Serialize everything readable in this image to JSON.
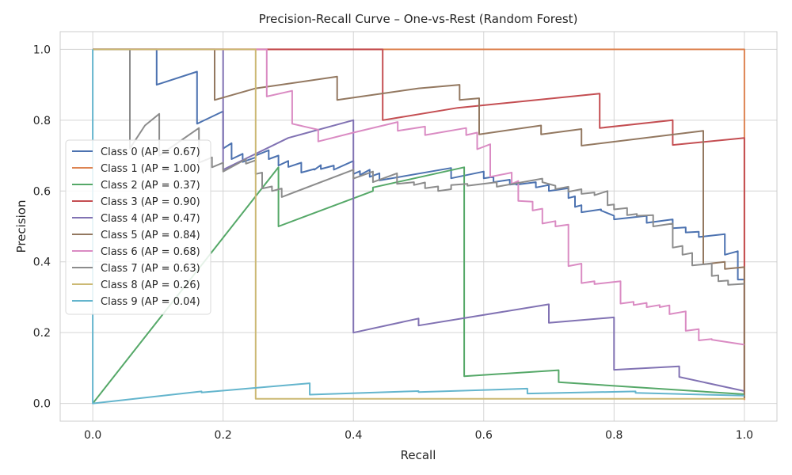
{
  "chart_data": {
    "type": "line",
    "title": "Precision-Recall Curve – One-vs-Rest (Random Forest)",
    "xlabel": "Recall",
    "ylabel": "Precision",
    "xlim": [
      -0.05,
      1.05
    ],
    "ylim": [
      -0.05,
      1.05
    ],
    "xticks": [
      "0.0",
      "0.2",
      "0.4",
      "0.6",
      "0.8",
      "1.0"
    ],
    "yticks": [
      "0.0",
      "0.2",
      "0.4",
      "0.6",
      "0.8",
      "1.0"
    ],
    "grid": true,
    "legend_position": "center-left",
    "series": [
      {
        "name": "Class 0 (AP = 0.67)",
        "color": "#4c72b0",
        "points": [
          [
            0,
            1
          ],
          [
            0.098,
            1
          ],
          [
            0.098,
            0.9
          ],
          [
            0.16,
            0.937
          ],
          [
            0.16,
            0.79
          ],
          [
            0.2,
            0.825
          ],
          [
            0.2,
            0.72
          ],
          [
            0.213,
            0.735
          ],
          [
            0.213,
            0.69
          ],
          [
            0.23,
            0.705
          ],
          [
            0.23,
            0.682
          ],
          [
            0.25,
            0.695
          ],
          [
            0.25,
            0.7
          ],
          [
            0.27,
            0.715
          ],
          [
            0.27,
            0.69
          ],
          [
            0.285,
            0.7
          ],
          [
            0.285,
            0.672
          ],
          [
            0.3,
            0.685
          ],
          [
            0.3,
            0.668
          ],
          [
            0.32,
            0.68
          ],
          [
            0.32,
            0.652
          ],
          [
            0.34,
            0.662
          ],
          [
            0.34,
            0.66
          ],
          [
            0.35,
            0.673
          ],
          [
            0.35,
            0.662
          ],
          [
            0.37,
            0.672
          ],
          [
            0.37,
            0.66
          ],
          [
            0.4,
            0.685
          ],
          [
            0.4,
            0.648
          ],
          [
            0.41,
            0.656
          ],
          [
            0.41,
            0.645
          ],
          [
            0.425,
            0.66
          ],
          [
            0.425,
            0.64
          ],
          [
            0.44,
            0.65
          ],
          [
            0.44,
            0.63
          ],
          [
            0.55,
            0.665
          ],
          [
            0.55,
            0.636
          ],
          [
            0.6,
            0.655
          ],
          [
            0.6,
            0.636
          ],
          [
            0.615,
            0.64
          ],
          [
            0.615,
            0.625
          ],
          [
            0.64,
            0.632
          ],
          [
            0.64,
            0.618
          ],
          [
            0.65,
            0.62
          ],
          [
            0.65,
            0.618
          ],
          [
            0.68,
            0.625
          ],
          [
            0.68,
            0.61
          ],
          [
            0.7,
            0.617
          ],
          [
            0.7,
            0.6
          ],
          [
            0.73,
            0.608
          ],
          [
            0.73,
            0.58
          ],
          [
            0.74,
            0.585
          ],
          [
            0.74,
            0.555
          ],
          [
            0.75,
            0.56
          ],
          [
            0.75,
            0.54
          ],
          [
            0.78,
            0.548
          ],
          [
            0.78,
            0.545
          ],
          [
            0.8,
            0.53
          ],
          [
            0.8,
            0.52
          ],
          [
            0.85,
            0.53
          ],
          [
            0.85,
            0.51
          ],
          [
            0.89,
            0.52
          ],
          [
            0.89,
            0.495
          ],
          [
            0.91,
            0.497
          ],
          [
            0.91,
            0.483
          ],
          [
            0.93,
            0.485
          ],
          [
            0.93,
            0.47
          ],
          [
            0.97,
            0.478
          ],
          [
            0.97,
            0.42
          ],
          [
            0.99,
            0.43
          ],
          [
            0.99,
            0.35
          ],
          [
            1,
            0.35
          ],
          [
            1,
            0.025
          ]
        ]
      },
      {
        "name": "Class 1 (AP = 1.00)",
        "color": "#dd8452",
        "points": [
          [
            0,
            1
          ],
          [
            1,
            1
          ],
          [
            1,
            0.01
          ]
        ]
      },
      {
        "name": "Class 2 (AP = 0.37)",
        "color": "#55a868",
        "points": [
          [
            0,
            0
          ],
          [
            0.285,
            0.667
          ],
          [
            0.285,
            0.5
          ],
          [
            0.43,
            0.6
          ],
          [
            0.43,
            0.61
          ],
          [
            0.57,
            0.667
          ],
          [
            0.57,
            0.077
          ],
          [
            0.715,
            0.094
          ],
          [
            0.715,
            0.06
          ],
          [
            1,
            0.026
          ]
        ]
      },
      {
        "name": "Class 3 (AP = 0.90)",
        "color": "#c44e52",
        "points": [
          [
            0,
            1
          ],
          [
            0.445,
            1
          ],
          [
            0.445,
            0.8
          ],
          [
            0.56,
            0.835
          ],
          [
            0.778,
            0.875
          ],
          [
            0.778,
            0.778
          ],
          [
            0.89,
            0.8
          ],
          [
            0.89,
            0.73
          ],
          [
            1,
            0.75
          ],
          [
            1,
            0.03
          ]
        ]
      },
      {
        "name": "Class 4 (AP = 0.47)",
        "color": "#8172b3",
        "points": [
          [
            0,
            1
          ],
          [
            0.2,
            1
          ],
          [
            0.2,
            0.66
          ],
          [
            0.3,
            0.75
          ],
          [
            0.4,
            0.8
          ],
          [
            0.4,
            0.2
          ],
          [
            0.5,
            0.24
          ],
          [
            0.5,
            0.22
          ],
          [
            0.7,
            0.28
          ],
          [
            0.7,
            0.228
          ],
          [
            0.8,
            0.243
          ],
          [
            0.8,
            0.095
          ],
          [
            0.9,
            0.105
          ],
          [
            0.9,
            0.075
          ],
          [
            1,
            0.035
          ]
        ]
      },
      {
        "name": "Class 5 (AP = 0.84)",
        "color": "#937860",
        "points": [
          [
            0,
            1
          ],
          [
            0.187,
            1
          ],
          [
            0.187,
            0.857
          ],
          [
            0.25,
            0.89
          ],
          [
            0.375,
            0.923
          ],
          [
            0.375,
            0.857
          ],
          [
            0.5,
            0.89
          ],
          [
            0.563,
            0.9
          ],
          [
            0.563,
            0.857
          ],
          [
            0.593,
            0.862
          ],
          [
            0.593,
            0.76
          ],
          [
            0.688,
            0.785
          ],
          [
            0.688,
            0.76
          ],
          [
            0.75,
            0.775
          ],
          [
            0.75,
            0.728
          ],
          [
            0.937,
            0.77
          ],
          [
            0.937,
            0.393
          ],
          [
            0.97,
            0.4
          ],
          [
            0.97,
            0.38
          ],
          [
            1,
            0.385
          ],
          [
            1,
            0.015
          ]
        ]
      },
      {
        "name": "Class 6 (AP = 0.68)",
        "color": "#da8bc3",
        "points": [
          [
            0,
            1
          ],
          [
            0.267,
            1
          ],
          [
            0.267,
            0.867
          ],
          [
            0.306,
            0.883
          ],
          [
            0.306,
            0.79
          ],
          [
            0.346,
            0.773
          ],
          [
            0.346,
            0.74
          ],
          [
            0.4,
            0.765
          ],
          [
            0.468,
            0.795
          ],
          [
            0.468,
            0.77
          ],
          [
            0.51,
            0.782
          ],
          [
            0.51,
            0.758
          ],
          [
            0.573,
            0.778
          ],
          [
            0.573,
            0.758
          ],
          [
            0.59,
            0.765
          ],
          [
            0.59,
            0.718
          ],
          [
            0.61,
            0.732
          ],
          [
            0.61,
            0.64
          ],
          [
            0.643,
            0.652
          ],
          [
            0.643,
            0.62
          ],
          [
            0.653,
            0.628
          ],
          [
            0.653,
            0.572
          ],
          [
            0.675,
            0.57
          ],
          [
            0.675,
            0.545
          ],
          [
            0.69,
            0.55
          ],
          [
            0.69,
            0.508
          ],
          [
            0.71,
            0.515
          ],
          [
            0.71,
            0.5
          ],
          [
            0.73,
            0.505
          ],
          [
            0.73,
            0.388
          ],
          [
            0.75,
            0.395
          ],
          [
            0.75,
            0.34
          ],
          [
            0.77,
            0.345
          ],
          [
            0.77,
            0.337
          ],
          [
            0.81,
            0.345
          ],
          [
            0.81,
            0.282
          ],
          [
            0.83,
            0.287
          ],
          [
            0.83,
            0.278
          ],
          [
            0.85,
            0.284
          ],
          [
            0.85,
            0.272
          ],
          [
            0.87,
            0.278
          ],
          [
            0.87,
            0.272
          ],
          [
            0.885,
            0.277
          ],
          [
            0.885,
            0.252
          ],
          [
            0.91,
            0.26
          ],
          [
            0.91,
            0.205
          ],
          [
            0.93,
            0.21
          ],
          [
            0.93,
            0.178
          ],
          [
            0.95,
            0.182
          ],
          [
            0.95,
            0.18
          ],
          [
            1,
            0.166
          ]
        ]
      },
      {
        "name": "Class 7 (AP = 0.63)",
        "color": "#8c8c8c",
        "points": [
          [
            0,
            1
          ],
          [
            0.057,
            1
          ],
          [
            0.057,
            0.72
          ],
          [
            0.08,
            0.785
          ],
          [
            0.102,
            0.818
          ],
          [
            0.102,
            0.7
          ],
          [
            0.163,
            0.778
          ],
          [
            0.163,
            0.68
          ],
          [
            0.183,
            0.695
          ],
          [
            0.183,
            0.667
          ],
          [
            0.2,
            0.68
          ],
          [
            0.2,
            0.655
          ],
          [
            0.235,
            0.69
          ],
          [
            0.235,
            0.677
          ],
          [
            0.25,
            0.687
          ],
          [
            0.25,
            0.648
          ],
          [
            0.26,
            0.652
          ],
          [
            0.26,
            0.607
          ],
          [
            0.275,
            0.613
          ],
          [
            0.275,
            0.6
          ],
          [
            0.29,
            0.607
          ],
          [
            0.29,
            0.583
          ],
          [
            0.4,
            0.66
          ],
          [
            0.4,
            0.635
          ],
          [
            0.43,
            0.655
          ],
          [
            0.43,
            0.625
          ],
          [
            0.467,
            0.65
          ],
          [
            0.467,
            0.62
          ],
          [
            0.493,
            0.625
          ],
          [
            0.493,
            0.617
          ],
          [
            0.51,
            0.624
          ],
          [
            0.51,
            0.608
          ],
          [
            0.53,
            0.613
          ],
          [
            0.53,
            0.6
          ],
          [
            0.55,
            0.605
          ],
          [
            0.55,
            0.617
          ],
          [
            0.575,
            0.62
          ],
          [
            0.575,
            0.615
          ],
          [
            0.62,
            0.625
          ],
          [
            0.62,
            0.612
          ],
          [
            0.69,
            0.635
          ],
          [
            0.69,
            0.625
          ],
          [
            0.71,
            0.615
          ],
          [
            0.71,
            0.605
          ],
          [
            0.73,
            0.612
          ],
          [
            0.73,
            0.598
          ],
          [
            0.75,
            0.605
          ],
          [
            0.75,
            0.592
          ],
          [
            0.77,
            0.596
          ],
          [
            0.77,
            0.588
          ],
          [
            0.79,
            0.6
          ],
          [
            0.79,
            0.56
          ],
          [
            0.8,
            0.562
          ],
          [
            0.8,
            0.548
          ],
          [
            0.82,
            0.552
          ],
          [
            0.82,
            0.532
          ],
          [
            0.835,
            0.535
          ],
          [
            0.835,
            0.53
          ],
          [
            0.86,
            0.532
          ],
          [
            0.86,
            0.5
          ],
          [
            0.89,
            0.508
          ],
          [
            0.89,
            0.44
          ],
          [
            0.905,
            0.445
          ],
          [
            0.905,
            0.42
          ],
          [
            0.92,
            0.425
          ],
          [
            0.92,
            0.39
          ],
          [
            0.95,
            0.395
          ],
          [
            0.95,
            0.36
          ],
          [
            0.96,
            0.362
          ],
          [
            0.96,
            0.345
          ],
          [
            0.975,
            0.347
          ],
          [
            0.975,
            0.335
          ],
          [
            1,
            0.338
          ]
        ]
      },
      {
        "name": "Class 8 (AP = 0.26)",
        "color": "#ccb974",
        "points": [
          [
            0,
            1
          ],
          [
            0.25,
            1
          ],
          [
            0.25,
            0.013
          ],
          [
            1,
            0.013
          ]
        ]
      },
      {
        "name": "Class 9 (AP = 0.04)",
        "color": "#64b5cd",
        "points": [
          [
            0,
            1
          ],
          [
            0,
            0
          ],
          [
            0.167,
            0.034
          ],
          [
            0.167,
            0.031
          ],
          [
            0.333,
            0.057
          ],
          [
            0.333,
            0.025
          ],
          [
            0.5,
            0.035
          ],
          [
            0.5,
            0.032
          ],
          [
            0.667,
            0.042
          ],
          [
            0.667,
            0.028
          ],
          [
            0.833,
            0.034
          ],
          [
            0.833,
            0.03
          ],
          [
            1,
            0.022
          ]
        ]
      }
    ]
  }
}
